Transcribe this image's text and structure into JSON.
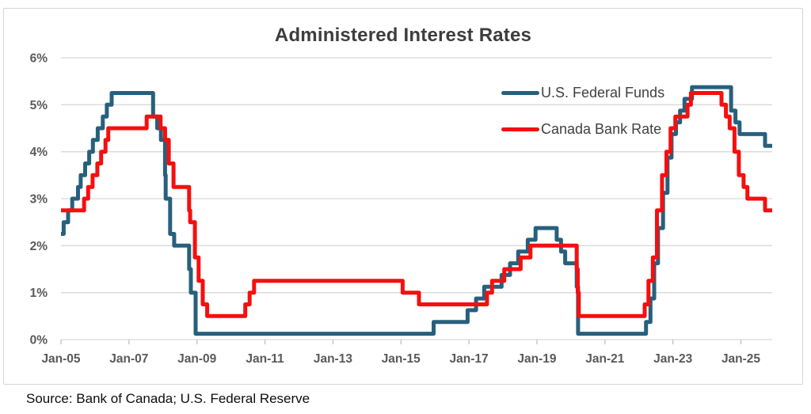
{
  "title": "Administered Interest Rates",
  "source": "Source: Bank of Canada; U.S. Federal Reserve",
  "colors": {
    "us_line": "#27607d",
    "canada_line": "#f50f0f",
    "grid": "#d9d9d9",
    "tick": "#c2c2c2",
    "axis_text": "#595959",
    "title_text": "#3d3d3d",
    "legend_text": "#404040",
    "border": "#d6d6d6"
  },
  "chart_data": {
    "type": "line",
    "subtype": "step-after",
    "title": "Administered Interest Rates",
    "xlabel": "",
    "ylabel": "",
    "x_domain": [
      2005.0,
      2025.92
    ],
    "y_domain": [
      0,
      6
    ],
    "grid": "horizontal-only",
    "legend_position": "inside-top-right",
    "y_ticks": [
      {
        "v": 0,
        "label": "0%"
      },
      {
        "v": 1,
        "label": "1%"
      },
      {
        "v": 2,
        "label": "2%"
      },
      {
        "v": 3,
        "label": "3%"
      },
      {
        "v": 4,
        "label": "4%"
      },
      {
        "v": 5,
        "label": "5%"
      },
      {
        "v": 6,
        "label": "6%"
      }
    ],
    "x_ticks": [
      {
        "v": 2005,
        "label": "Jan-05"
      },
      {
        "v": 2007,
        "label": "Jan-07"
      },
      {
        "v": 2009,
        "label": "Jan-09"
      },
      {
        "v": 2011,
        "label": "Jan-11"
      },
      {
        "v": 2013,
        "label": "Jan-13"
      },
      {
        "v": 2015,
        "label": "Jan-15"
      },
      {
        "v": 2017,
        "label": "Jan-17"
      },
      {
        "v": 2019,
        "label": "Jan-19"
      },
      {
        "v": 2021,
        "label": "Jan-21"
      },
      {
        "v": 2023,
        "label": "Jan-23"
      },
      {
        "v": 2025,
        "label": "Jan-25"
      }
    ],
    "series": [
      {
        "name": "U.S. Federal Funds",
        "color": "#27607d",
        "units": "percent",
        "points": [
          [
            2005.0,
            2.25
          ],
          [
            2005.08,
            2.5
          ],
          [
            2005.21,
            2.75
          ],
          [
            2005.33,
            3.0
          ],
          [
            2005.5,
            3.25
          ],
          [
            2005.58,
            3.5
          ],
          [
            2005.71,
            3.75
          ],
          [
            2005.83,
            4.0
          ],
          [
            2005.94,
            4.25
          ],
          [
            2006.08,
            4.5
          ],
          [
            2006.23,
            4.75
          ],
          [
            2006.35,
            5.0
          ],
          [
            2006.49,
            5.25
          ],
          [
            2007.71,
            4.75
          ],
          [
            2007.83,
            4.5
          ],
          [
            2007.94,
            4.25
          ],
          [
            2008.06,
            3.5
          ],
          [
            2008.08,
            3.0
          ],
          [
            2008.21,
            2.25
          ],
          [
            2008.33,
            2.0
          ],
          [
            2008.77,
            1.5
          ],
          [
            2008.82,
            1.0
          ],
          [
            2008.96,
            0.125
          ],
          [
            2015.96,
            0.375
          ],
          [
            2016.96,
            0.625
          ],
          [
            2017.21,
            0.875
          ],
          [
            2017.45,
            1.125
          ],
          [
            2017.96,
            1.375
          ],
          [
            2018.21,
            1.625
          ],
          [
            2018.45,
            1.875
          ],
          [
            2018.73,
            2.125
          ],
          [
            2018.96,
            2.375
          ],
          [
            2019.58,
            2.125
          ],
          [
            2019.71,
            1.875
          ],
          [
            2019.83,
            1.625
          ],
          [
            2020.17,
            1.125
          ],
          [
            2020.21,
            0.125
          ],
          [
            2022.21,
            0.375
          ],
          [
            2022.34,
            0.875
          ],
          [
            2022.45,
            1.625
          ],
          [
            2022.56,
            2.375
          ],
          [
            2022.71,
            3.125
          ],
          [
            2022.84,
            3.875
          ],
          [
            2022.96,
            4.375
          ],
          [
            2023.09,
            4.625
          ],
          [
            2023.21,
            4.875
          ],
          [
            2023.34,
            5.125
          ],
          [
            2023.56,
            5.375
          ],
          [
            2024.71,
            4.875
          ],
          [
            2024.84,
            4.625
          ],
          [
            2024.96,
            4.375
          ],
          [
            2025.71,
            4.125
          ]
        ]
      },
      {
        "name": "Canada Bank Rate",
        "color": "#f50f0f",
        "units": "percent",
        "points": [
          [
            2005.0,
            2.75
          ],
          [
            2005.68,
            3.0
          ],
          [
            2005.8,
            3.25
          ],
          [
            2005.93,
            3.5
          ],
          [
            2006.07,
            3.75
          ],
          [
            2006.18,
            4.0
          ],
          [
            2006.31,
            4.25
          ],
          [
            2006.39,
            4.5
          ],
          [
            2007.52,
            4.75
          ],
          [
            2007.93,
            4.5
          ],
          [
            2008.06,
            4.25
          ],
          [
            2008.17,
            3.75
          ],
          [
            2008.31,
            3.25
          ],
          [
            2008.77,
            2.75
          ],
          [
            2008.8,
            2.5
          ],
          [
            2008.94,
            1.75
          ],
          [
            2009.05,
            1.25
          ],
          [
            2009.17,
            0.75
          ],
          [
            2009.3,
            0.5
          ],
          [
            2010.42,
            0.75
          ],
          [
            2010.55,
            1.0
          ],
          [
            2010.68,
            1.25
          ],
          [
            2015.05,
            1.0
          ],
          [
            2015.53,
            0.75
          ],
          [
            2017.53,
            1.0
          ],
          [
            2017.68,
            1.25
          ],
          [
            2018.04,
            1.5
          ],
          [
            2018.52,
            1.75
          ],
          [
            2018.81,
            2.0
          ],
          [
            2020.17,
            1.5
          ],
          [
            2020.2,
            1.0
          ],
          [
            2020.23,
            0.5
          ],
          [
            2022.17,
            0.75
          ],
          [
            2022.28,
            1.25
          ],
          [
            2022.41,
            1.75
          ],
          [
            2022.53,
            2.75
          ],
          [
            2022.68,
            3.5
          ],
          [
            2022.81,
            4.0
          ],
          [
            2022.93,
            4.5
          ],
          [
            2023.07,
            4.75
          ],
          [
            2023.43,
            5.0
          ],
          [
            2023.53,
            5.25
          ],
          [
            2024.43,
            5.0
          ],
          [
            2024.56,
            4.75
          ],
          [
            2024.67,
            4.5
          ],
          [
            2024.81,
            4.0
          ],
          [
            2024.94,
            3.5
          ],
          [
            2025.08,
            3.25
          ],
          [
            2025.19,
            3.0
          ],
          [
            2025.71,
            2.75
          ]
        ]
      }
    ]
  }
}
